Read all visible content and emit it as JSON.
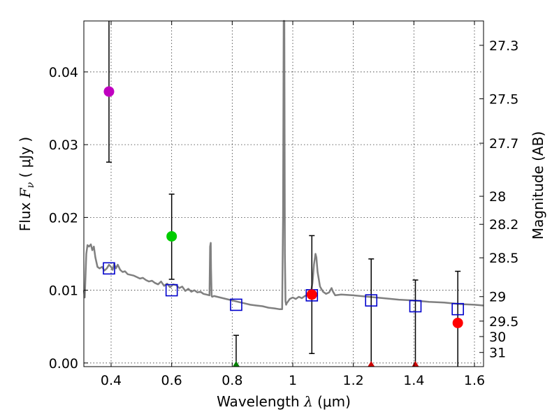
{
  "chart_data": {
    "type": "scatter",
    "xlabel": "Wavelength  λ (μm)",
    "ylabel": "Flux  F_ν  ( μJy )",
    "ylabel_parts": {
      "prefix": "Flux ",
      "var": "F",
      "sub": "ν",
      "suffix": "  ( μJy )"
    },
    "xlabel_parts": {
      "prefix": "Wavelength  ",
      "var": "λ",
      "suffix": " (μm)"
    },
    "y2label": "Magnitude (AB)",
    "xlim": [
      0.31,
      1.63
    ],
    "ylim": [
      -0.0005,
      0.047
    ],
    "xticks": [
      0.4,
      0.6,
      0.8,
      1.0,
      1.2,
      1.4,
      1.6
    ],
    "xtick_labels": [
      "0.4",
      "0.6",
      "0.8",
      "1",
      "1.2",
      "1.4",
      "1.6"
    ],
    "yticks": [
      0.0,
      0.01,
      0.02,
      0.03,
      0.04
    ],
    "ytick_labels": [
      "0.00",
      "0.01",
      "0.02",
      "0.03",
      "0.04"
    ],
    "y2ticks": [
      27.3,
      27.5,
      27.7,
      28,
      28.2,
      28.5,
      29,
      29.5,
      30,
      31
    ],
    "y2tick_labels": [
      "27.3",
      "27.5",
      "27.7",
      "28",
      "28.2",
      "28.5",
      "29",
      "29.5",
      "30",
      "31"
    ],
    "grid": true,
    "observed": [
      {
        "x": 0.393,
        "y": 0.0373,
        "err_lo": 0.0276,
        "err_hi": 0.047,
        "color": "#c000c0",
        "marker": "circle"
      },
      {
        "x": 0.6,
        "y": 0.0174,
        "err_lo": 0.0115,
        "err_hi": 0.0232,
        "color": "#00cc00",
        "marker": "circle"
      },
      {
        "x": 0.813,
        "y": -0.0002,
        "err_lo": -0.0005,
        "err_hi": 0.0038,
        "color": "#008000",
        "marker": "triangle"
      },
      {
        "x": 1.063,
        "y": 0.0094,
        "err_lo": 0.0013,
        "err_hi": 0.0175,
        "color": "#ff0000",
        "marker": "circle"
      },
      {
        "x": 1.259,
        "y": -0.0002,
        "err_lo": -0.0005,
        "err_hi": 0.0143,
        "color": "#cc0000",
        "marker": "triangle"
      },
      {
        "x": 1.405,
        "y": -0.0002,
        "err_lo": -0.0005,
        "err_hi": 0.0114,
        "color": "#cc0000",
        "marker": "triangle"
      },
      {
        "x": 1.545,
        "y": 0.0055,
        "err_lo": -0.0005,
        "err_hi": 0.0126,
        "color": "#ff0000",
        "marker": "circle"
      }
    ],
    "model_points": {
      "color": "#0000cc",
      "marker": "square",
      "x": [
        0.393,
        0.6,
        0.813,
        1.063,
        1.259,
        1.405,
        1.545
      ],
      "y": [
        0.013,
        0.01,
        0.008,
        0.0093,
        0.0086,
        0.0078,
        0.0074
      ]
    },
    "sed_template": {
      "color": "#808080",
      "x": [
        0.31,
        0.313,
        0.318,
        0.322,
        0.327,
        0.333,
        0.338,
        0.343,
        0.348,
        0.355,
        0.362,
        0.37,
        0.378,
        0.386,
        0.393,
        0.4,
        0.405,
        0.41,
        0.416,
        0.422,
        0.43,
        0.438,
        0.446,
        0.455,
        0.465,
        0.475,
        0.485,
        0.495,
        0.505,
        0.515,
        0.525,
        0.535,
        0.545,
        0.555,
        0.565,
        0.575,
        0.585,
        0.595,
        0.605,
        0.615,
        0.625,
        0.635,
        0.645,
        0.655,
        0.665,
        0.675,
        0.685,
        0.695,
        0.705,
        0.715,
        0.725,
        0.727,
        0.729,
        0.73,
        0.732,
        0.734,
        0.74,
        0.76,
        0.78,
        0.8,
        0.82,
        0.84,
        0.86,
        0.88,
        0.9,
        0.92,
        0.94,
        0.955,
        0.965,
        0.968,
        0.97,
        0.972,
        0.974,
        0.976,
        0.978,
        0.98,
        0.99,
        1.0,
        1.01,
        1.02,
        1.03,
        1.04,
        1.05,
        1.06,
        1.065,
        1.07,
        1.075,
        1.078,
        1.082,
        1.09,
        1.1,
        1.11,
        1.12,
        1.128,
        1.133,
        1.14,
        1.16,
        1.2,
        1.25,
        1.3,
        1.35,
        1.4,
        1.45,
        1.5,
        1.55,
        1.6,
        1.63
      ],
      "y": [
        0.01,
        0.009,
        0.015,
        0.0162,
        0.016,
        0.0163,
        0.0155,
        0.016,
        0.0145,
        0.0132,
        0.013,
        0.0132,
        0.0127,
        0.013,
        0.0135,
        0.0132,
        0.0128,
        0.0136,
        0.013,
        0.0135,
        0.0128,
        0.0125,
        0.0126,
        0.0122,
        0.0121,
        0.012,
        0.0118,
        0.0116,
        0.0117,
        0.0114,
        0.0112,
        0.0113,
        0.011,
        0.0108,
        0.0112,
        0.0106,
        0.0109,
        0.0104,
        0.0108,
        0.0107,
        0.0103,
        0.0105,
        0.0099,
        0.0102,
        0.0098,
        0.01,
        0.0097,
        0.0098,
        0.0095,
        0.0094,
        0.0093,
        0.016,
        0.0165,
        0.013,
        0.0092,
        0.0091,
        0.0092,
        0.009,
        0.0088,
        0.0086,
        0.0084,
        0.0082,
        0.008,
        0.0079,
        0.0078,
        0.0076,
        0.0075,
        0.0074,
        0.0074,
        0.02,
        0.047,
        0.047,
        0.015,
        0.0085,
        0.008,
        0.0082,
        0.0088,
        0.009,
        0.0088,
        0.0091,
        0.0089,
        0.0092,
        0.0094,
        0.0097,
        0.011,
        0.0135,
        0.015,
        0.0145,
        0.0125,
        0.0105,
        0.0098,
        0.0095,
        0.0097,
        0.0103,
        0.0098,
        0.0093,
        0.0094,
        0.0093,
        0.0091,
        0.0089,
        0.0087,
        0.0086,
        0.0084,
        0.0083,
        0.0081,
        0.008,
        0.0079
      ]
    }
  }
}
